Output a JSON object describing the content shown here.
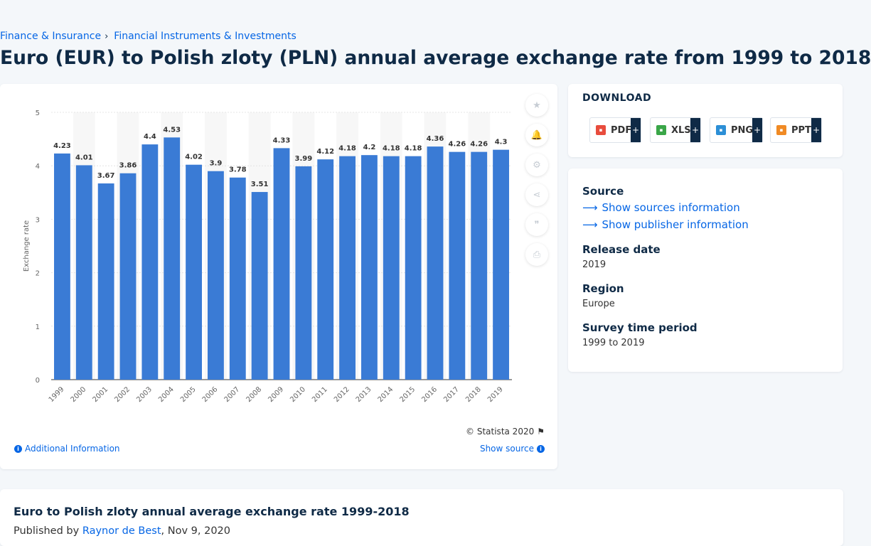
{
  "breadcrumb": [
    "Finance & Insurance",
    "Financial Instruments & Investments"
  ],
  "page_title": "Euro (EUR) to Polish zloty (PLN) annual average exchange rate from 1999 to 2018",
  "chart_data": {
    "type": "bar",
    "categories": [
      "1999",
      "2000",
      "2001",
      "2002",
      "2003",
      "2004",
      "2005",
      "2006",
      "2007",
      "2008",
      "2009",
      "2010",
      "2011",
      "2012",
      "2013",
      "2014",
      "2015",
      "2016",
      "2017",
      "2018",
      "2019"
    ],
    "values": [
      4.23,
      4.01,
      3.67,
      3.86,
      4.4,
      4.53,
      4.02,
      3.9,
      3.78,
      3.51,
      4.33,
      3.99,
      4.12,
      4.18,
      4.2,
      4.18,
      4.18,
      4.36,
      4.26,
      4.26,
      4.3
    ],
    "value_labels": [
      "4.23",
      "4.01",
      "3.67",
      "3.86",
      "4.4",
      "4.53",
      "4.02",
      "3.9",
      "3.78",
      "3.51",
      "4.33",
      "3.99",
      "4.12",
      "4.18",
      "4.2",
      "4.18",
      "4.18",
      "4.36",
      "4.26",
      "4.26",
      "4.3"
    ],
    "title": "",
    "xlabel": "",
    "ylabel": "Exchange rate",
    "ylim": [
      0,
      5
    ],
    "yticks": [
      "0",
      "1",
      "2",
      "3",
      "4",
      "5"
    ],
    "grid": true,
    "bar_color": "#3a7bd5"
  },
  "tools": [
    {
      "name": "favorite-icon",
      "glyph": "★"
    },
    {
      "name": "bell-icon",
      "glyph": "🔔"
    },
    {
      "name": "gear-icon",
      "glyph": "⚙"
    },
    {
      "name": "share-icon",
      "glyph": "⋖"
    },
    {
      "name": "quote-icon",
      "glyph": "❞"
    },
    {
      "name": "print-icon",
      "glyph": "⎙"
    }
  ],
  "chart_footer": {
    "copyright": "© Statista 2020",
    "additional_info": "Additional Information",
    "show_source": "Show source"
  },
  "download": {
    "title": "DOWNLOAD",
    "buttons": [
      {
        "label": "PDF",
        "color": "#e84c3d"
      },
      {
        "label": "XLS",
        "color": "#3aa648"
      },
      {
        "label": "PNG",
        "color": "#2c8fd6"
      },
      {
        "label": "PPT",
        "color": "#f08a24"
      }
    ],
    "plus": "+"
  },
  "info": {
    "source_label": "Source",
    "sources_link": "Show sources information",
    "publisher_link": "Show publisher information",
    "release_label": "Release date",
    "release_value": "2019",
    "region_label": "Region",
    "region_value": "Europe",
    "period_label": "Survey time period",
    "period_value": "1999 to 2019"
  },
  "bottom": {
    "title": "Euro to Polish zloty annual average exchange rate 1999-2018",
    "published_prefix": "Published by ",
    "author": "Raynor de Best",
    "date": ", Nov 9, 2020"
  }
}
